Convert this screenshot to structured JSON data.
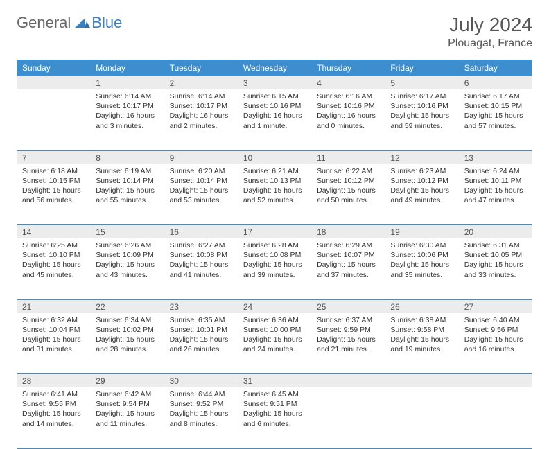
{
  "logo": {
    "general": "General",
    "blue": "Blue"
  },
  "title": "July 2024",
  "location": "Plouagat, France",
  "colors": {
    "header_bg": "#3d8ecf",
    "header_fg": "#ffffff",
    "daynum_bg": "#ececec",
    "row_border": "#3d8ecf",
    "text": "#333333",
    "title": "#555555",
    "logo_gray": "#666666",
    "logo_blue": "#3a7fbf"
  },
  "weekdays": [
    "Sunday",
    "Monday",
    "Tuesday",
    "Wednesday",
    "Thursday",
    "Friday",
    "Saturday"
  ],
  "weeks": [
    [
      null,
      {
        "n": "1",
        "sr": "6:14 AM",
        "ss": "10:17 PM",
        "dl": "16 hours and 3 minutes."
      },
      {
        "n": "2",
        "sr": "6:14 AM",
        "ss": "10:17 PM",
        "dl": "16 hours and 2 minutes."
      },
      {
        "n": "3",
        "sr": "6:15 AM",
        "ss": "10:16 PM",
        "dl": "16 hours and 1 minute."
      },
      {
        "n": "4",
        "sr": "6:16 AM",
        "ss": "10:16 PM",
        "dl": "16 hours and 0 minutes."
      },
      {
        "n": "5",
        "sr": "6:17 AM",
        "ss": "10:16 PM",
        "dl": "15 hours and 59 minutes."
      },
      {
        "n": "6",
        "sr": "6:17 AM",
        "ss": "10:15 PM",
        "dl": "15 hours and 57 minutes."
      }
    ],
    [
      {
        "n": "7",
        "sr": "6:18 AM",
        "ss": "10:15 PM",
        "dl": "15 hours and 56 minutes."
      },
      {
        "n": "8",
        "sr": "6:19 AM",
        "ss": "10:14 PM",
        "dl": "15 hours and 55 minutes."
      },
      {
        "n": "9",
        "sr": "6:20 AM",
        "ss": "10:14 PM",
        "dl": "15 hours and 53 minutes."
      },
      {
        "n": "10",
        "sr": "6:21 AM",
        "ss": "10:13 PM",
        "dl": "15 hours and 52 minutes."
      },
      {
        "n": "11",
        "sr": "6:22 AM",
        "ss": "10:12 PM",
        "dl": "15 hours and 50 minutes."
      },
      {
        "n": "12",
        "sr": "6:23 AM",
        "ss": "10:12 PM",
        "dl": "15 hours and 49 minutes."
      },
      {
        "n": "13",
        "sr": "6:24 AM",
        "ss": "10:11 PM",
        "dl": "15 hours and 47 minutes."
      }
    ],
    [
      {
        "n": "14",
        "sr": "6:25 AM",
        "ss": "10:10 PM",
        "dl": "15 hours and 45 minutes."
      },
      {
        "n": "15",
        "sr": "6:26 AM",
        "ss": "10:09 PM",
        "dl": "15 hours and 43 minutes."
      },
      {
        "n": "16",
        "sr": "6:27 AM",
        "ss": "10:08 PM",
        "dl": "15 hours and 41 minutes."
      },
      {
        "n": "17",
        "sr": "6:28 AM",
        "ss": "10:08 PM",
        "dl": "15 hours and 39 minutes."
      },
      {
        "n": "18",
        "sr": "6:29 AM",
        "ss": "10:07 PM",
        "dl": "15 hours and 37 minutes."
      },
      {
        "n": "19",
        "sr": "6:30 AM",
        "ss": "10:06 PM",
        "dl": "15 hours and 35 minutes."
      },
      {
        "n": "20",
        "sr": "6:31 AM",
        "ss": "10:05 PM",
        "dl": "15 hours and 33 minutes."
      }
    ],
    [
      {
        "n": "21",
        "sr": "6:32 AM",
        "ss": "10:04 PM",
        "dl": "15 hours and 31 minutes."
      },
      {
        "n": "22",
        "sr": "6:34 AM",
        "ss": "10:02 PM",
        "dl": "15 hours and 28 minutes."
      },
      {
        "n": "23",
        "sr": "6:35 AM",
        "ss": "10:01 PM",
        "dl": "15 hours and 26 minutes."
      },
      {
        "n": "24",
        "sr": "6:36 AM",
        "ss": "10:00 PM",
        "dl": "15 hours and 24 minutes."
      },
      {
        "n": "25",
        "sr": "6:37 AM",
        "ss": "9:59 PM",
        "dl": "15 hours and 21 minutes."
      },
      {
        "n": "26",
        "sr": "6:38 AM",
        "ss": "9:58 PM",
        "dl": "15 hours and 19 minutes."
      },
      {
        "n": "27",
        "sr": "6:40 AM",
        "ss": "9:56 PM",
        "dl": "15 hours and 16 minutes."
      }
    ],
    [
      {
        "n": "28",
        "sr": "6:41 AM",
        "ss": "9:55 PM",
        "dl": "15 hours and 14 minutes."
      },
      {
        "n": "29",
        "sr": "6:42 AM",
        "ss": "9:54 PM",
        "dl": "15 hours and 11 minutes."
      },
      {
        "n": "30",
        "sr": "6:44 AM",
        "ss": "9:52 PM",
        "dl": "15 hours and 8 minutes."
      },
      {
        "n": "31",
        "sr": "6:45 AM",
        "ss": "9:51 PM",
        "dl": "15 hours and 6 minutes."
      },
      null,
      null,
      null
    ]
  ],
  "labels": {
    "sunrise": "Sunrise: ",
    "sunset": "Sunset: ",
    "daylight": "Daylight: "
  }
}
